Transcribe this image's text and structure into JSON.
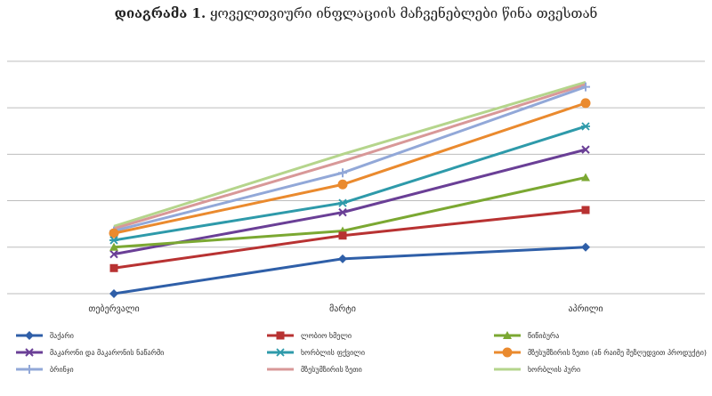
{
  "title": {
    "prefix": "დიაგრამა 1.",
    "text": "ყოველთვიური ინფლაციის მაჩვენებლები წინა თვესთან"
  },
  "chart_data": {
    "type": "line",
    "title": "დიაგრამა 1. ყოველთვიური ინფლაციის მაჩვენებლები წინა თვესთან",
    "categories": [
      "თებერვალი",
      "მარტი",
      "აპრილი"
    ],
    "ylim": [
      0,
      5.4
    ],
    "grid": true,
    "legend_position": "bottom",
    "series": [
      {
        "name": "შაქარი",
        "values": [
          0.0,
          0.75,
          1.0
        ],
        "color": "#2f5fa8",
        "marker": "diamond"
      },
      {
        "name": "ლობიო ხმელი",
        "values": [
          0.55,
          1.25,
          1.8
        ],
        "color": "#b83232",
        "marker": "square"
      },
      {
        "name": "წიწიბურა",
        "values": [
          1.0,
          1.35,
          2.5
        ],
        "color": "#7ba832",
        "marker": "triangle"
      },
      {
        "name": "მაკარონი და მაკარონის ნაწარმი",
        "values": [
          0.85,
          1.75,
          3.1
        ],
        "color": "#6a3f96",
        "marker": "x"
      },
      {
        "name": "ხორბლის ფქვილი",
        "values": [
          1.15,
          1.95,
          3.6
        ],
        "color": "#2e9aaa",
        "marker": "star"
      },
      {
        "name": "მზესუმზირის ზეთი (ან რაიმე შეზღუდვით პროდუქტი)",
        "values": [
          1.3,
          2.35,
          4.1
        ],
        "color": "#ea8a2e",
        "marker": "circle"
      },
      {
        "name": "ბრინჯი",
        "values": [
          1.35,
          2.6,
          4.45
        ],
        "color": "#92a8d8",
        "marker": "plus"
      },
      {
        "name": "მზესუმზირის ზეთი",
        "values": [
          1.4,
          2.85,
          4.5
        ],
        "color": "#d89898",
        "marker": "none"
      },
      {
        "name": "ხორბლის პური",
        "values": [
          1.45,
          3.0,
          4.55
        ],
        "color": "#b5d58c",
        "marker": "none"
      }
    ]
  }
}
